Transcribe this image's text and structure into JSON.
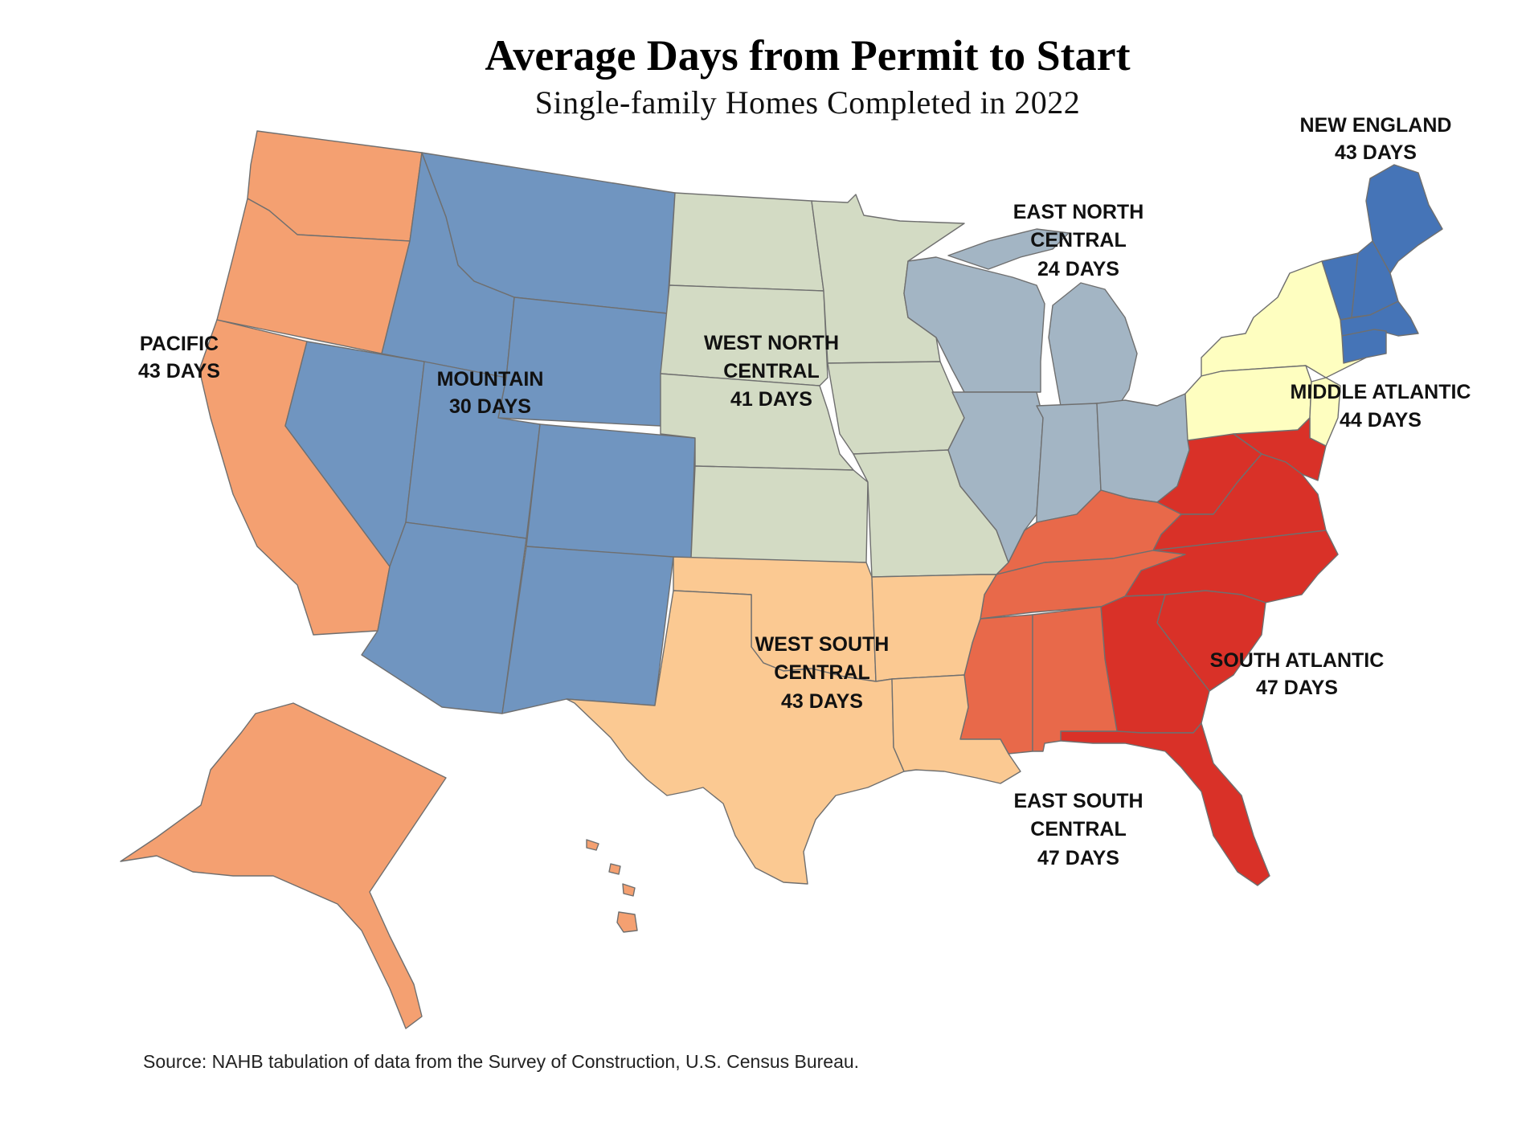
{
  "title": "Average Days from Permit to Start",
  "subtitle": "Single-family Homes Completed in 2022",
  "source": "Source: NAHB tabulation of data from the Survey of Construction, U.S. Census Bureau.",
  "colors": {
    "pacific": "#F4A071",
    "mountain": "#7095C0",
    "west_north_central": "#D3DBC4",
    "east_north_central": "#A3B5C4",
    "new_england": "#4574B7",
    "middle_atlantic": "#FEFEC0",
    "south_atlantic": "#D93128",
    "east_south_central": "#E8694A",
    "west_south_central": "#FBC992"
  },
  "regions": [
    {
      "key": "pacific",
      "name": "PACIFIC",
      "days": 43,
      "days_label": "43 DAYS"
    },
    {
      "key": "mountain",
      "name": "MOUNTAIN",
      "days": 30,
      "days_label": "30 DAYS"
    },
    {
      "key": "west_north_central",
      "name_line1": "WEST NORTH",
      "name_line2": "CENTRAL",
      "days": 41,
      "days_label": "41 DAYS"
    },
    {
      "key": "east_north_central",
      "name_line1": "EAST NORTH",
      "name_line2": "CENTRAL",
      "days": 24,
      "days_label": "24 DAYS"
    },
    {
      "key": "new_england",
      "name": "NEW ENGLAND",
      "days": 43,
      "days_label": "43 DAYS"
    },
    {
      "key": "middle_atlantic",
      "name": "MIDDLE ATLANTIC",
      "days": 44,
      "days_label": "44 DAYS"
    },
    {
      "key": "south_atlantic",
      "name": "SOUTH ATLANTIC",
      "days": 47,
      "days_label": "47 DAYS"
    },
    {
      "key": "east_south_central",
      "name_line1": "EAST SOUTH",
      "name_line2": "CENTRAL",
      "days": 47,
      "days_label": "47 DAYS"
    },
    {
      "key": "west_south_central",
      "name_line1": "WEST SOUTH",
      "name_line2": "CENTRAL",
      "days": 43,
      "days_label": "43 DAYS"
    }
  ]
}
